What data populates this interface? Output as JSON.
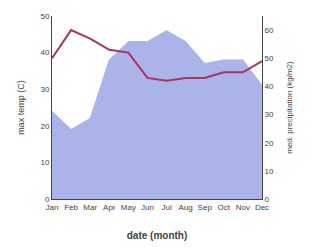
{
  "chart_data": {
    "type": "line",
    "categories": [
      "Jan",
      "Feb",
      "Mar",
      "Apr",
      "May",
      "Jun",
      "Jul",
      "Aug",
      "Sep",
      "Oct",
      "Nov",
      "Dec"
    ],
    "series": [
      {
        "type": "area",
        "color": "#aab4e8",
        "values": [
          24,
          19,
          22,
          38,
          43,
          43,
          46,
          43,
          37,
          38,
          38,
          31
        ]
      },
      {
        "type": "line",
        "color": "#b03060",
        "axis": "y2",
        "values": [
          50,
          60,
          57,
          53,
          52,
          43,
          42,
          43,
          43,
          45,
          45,
          49
        ]
      }
    ],
    "xlabel": "date (month)",
    "ylabel": "max temp (C)",
    "y2label": "med. precipitation (kg/m2)",
    "ylim": [
      0,
      50
    ],
    "yticks": [
      0,
      10,
      20,
      30,
      40,
      50
    ],
    "y2lim": [
      0,
      65
    ],
    "y2ticks": [
      0,
      10,
      20,
      30,
      40,
      50,
      60
    ],
    "grid": false
  }
}
